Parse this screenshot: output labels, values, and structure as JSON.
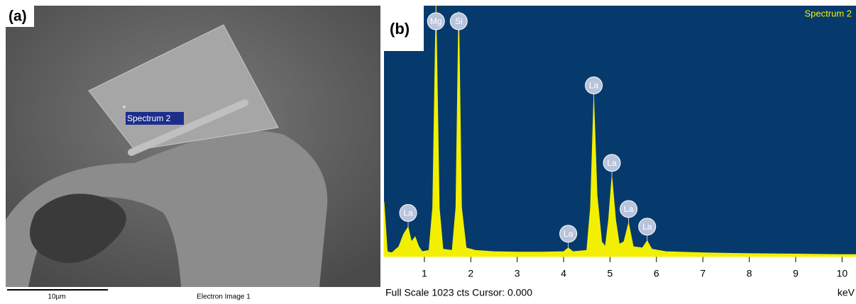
{
  "panel_a": {
    "label": "(a)",
    "spectrum_label": "Spectrum 2",
    "scale_bar": "10µm",
    "caption": "Electron Image 1"
  },
  "chart_data": {
    "type": "line",
    "label": "(b)",
    "title": "Spectrum 2",
    "color": "#f2f000",
    "x": [
      0.13,
      0.2,
      0.3,
      0.45,
      0.55,
      0.65,
      0.72,
      0.8,
      0.88,
      0.95,
      1.1,
      1.18,
      1.25,
      1.32,
      1.4,
      1.6,
      1.68,
      1.74,
      1.8,
      1.9,
      2.1,
      2.5,
      3.0,
      3.5,
      4.0,
      4.1,
      4.2,
      4.5,
      4.58,
      4.65,
      4.72,
      4.82,
      4.9,
      4.97,
      5.04,
      5.12,
      5.2,
      5.3,
      5.4,
      5.5,
      5.7,
      5.8,
      5.9,
      6.2,
      7,
      8,
      9,
      10,
      10.3
    ],
    "values": [
      222,
      20,
      15,
      40,
      90,
      120,
      60,
      80,
      40,
      20,
      25,
      200,
      1023,
      200,
      30,
      25,
      200,
      1000,
      200,
      35,
      25,
      20,
      18,
      18,
      20,
      35,
      20,
      25,
      200,
      640,
      250,
      60,
      40,
      150,
      324,
      150,
      50,
      60,
      136,
      40,
      35,
      64,
      30,
      20,
      15,
      12,
      10,
      8,
      8
    ],
    "xlim": [
      0.13,
      10.3
    ],
    "ylim": [
      0,
      1023
    ],
    "xticks": [
      1,
      2,
      3,
      4,
      5,
      6,
      7,
      8,
      9,
      10
    ],
    "annotations": [
      {
        "text": "La",
        "x": 0.65
      },
      {
        "text": "Mg",
        "x": 1.25
      },
      {
        "text": "Si",
        "x": 1.74
      },
      {
        "text": "La",
        "x": 4.1
      },
      {
        "text": "La",
        "x": 4.65
      },
      {
        "text": "La",
        "x": 5.04
      },
      {
        "text": "La",
        "x": 5.4
      },
      {
        "text": "La",
        "x": 5.8
      }
    ],
    "footer": "Full Scale 1023 cts Cursor: 0.000",
    "x_unit": "keV"
  }
}
